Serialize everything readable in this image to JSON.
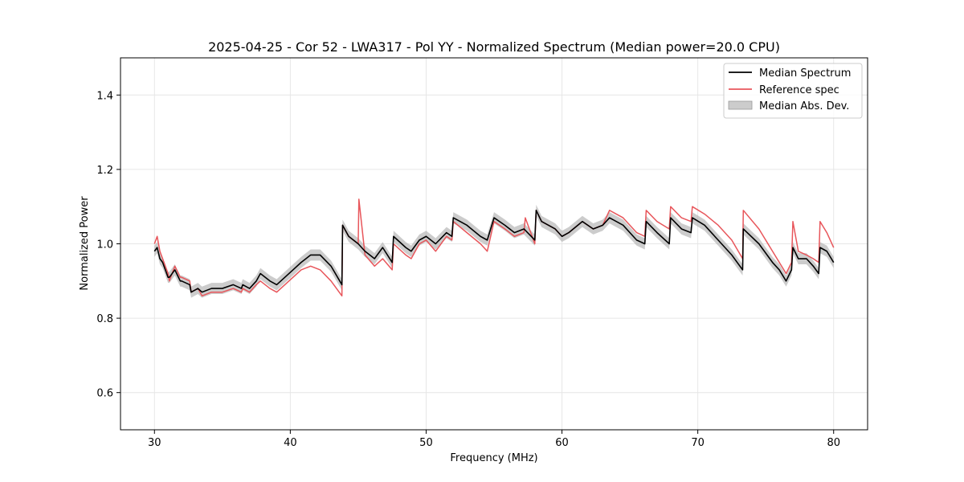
{
  "chart_data": {
    "type": "line",
    "title": "2025-04-25 - Cor 52 - LWA317 - Pol YY - Normalized Spectrum (Median power=20.0 CPU)",
    "xlabel": "Frequency (MHz)",
    "ylabel": "Normalized Power",
    "xlim": [
      27.5,
      82.5
    ],
    "ylim": [
      0.5,
      1.5
    ],
    "xticks": [
      30,
      40,
      50,
      60,
      70,
      80
    ],
    "yticks": [
      0.6,
      0.8,
      1.0,
      1.2,
      1.4
    ],
    "xtick_labels": [
      "30",
      "40",
      "50",
      "60",
      "70",
      "80"
    ],
    "ytick_labels": [
      "0.6",
      "0.8",
      "1.0",
      "1.2",
      "1.4"
    ],
    "grid": true,
    "legend_position": "top-right",
    "series": [
      {
        "name": "Median Spectrum",
        "color": "#000000",
        "x": [
          30.0,
          30.2,
          30.4,
          30.6,
          30.8,
          31.0,
          31.1,
          31.5,
          31.9,
          32.0,
          32.6,
          32.7,
          33.2,
          33.5,
          34.2,
          35.0,
          35.8,
          36.4,
          36.5,
          37.0,
          37.5,
          37.8,
          38.5,
          39.0,
          39.6,
          40.2,
          40.8,
          41.5,
          42.2,
          43.0,
          43.8,
          43.85,
          44.3,
          45.0,
          45.5,
          46.2,
          46.8,
          47.5,
          47.6,
          48.5,
          48.9,
          49.5,
          50.0,
          50.7,
          51.5,
          51.9,
          52.0,
          53.0,
          54.0,
          54.5,
          55.0,
          55.8,
          56.5,
          57.2,
          58.0,
          58.1,
          58.5,
          59.5,
          60.0,
          60.5,
          61.5,
          62.3,
          63.0,
          63.5,
          64.5,
          65.5,
          66.1,
          66.2,
          67.0,
          67.9,
          68.0,
          68.8,
          69.5,
          69.6,
          70.5,
          71.5,
          72.5,
          73.3,
          73.35,
          74.5,
          75.5,
          76.0,
          76.5,
          76.9,
          77.0,
          77.4,
          78.0,
          78.5,
          78.9,
          79.0,
          79.5,
          80.0
        ],
        "y": [
          0.98,
          0.99,
          0.96,
          0.95,
          0.93,
          0.91,
          0.91,
          0.93,
          0.9,
          0.9,
          0.89,
          0.87,
          0.88,
          0.87,
          0.88,
          0.88,
          0.89,
          0.88,
          0.89,
          0.88,
          0.9,
          0.92,
          0.9,
          0.89,
          0.91,
          0.93,
          0.95,
          0.97,
          0.97,
          0.94,
          0.89,
          1.05,
          1.02,
          1.0,
          0.98,
          0.96,
          0.99,
          0.95,
          1.02,
          0.99,
          0.98,
          1.01,
          1.02,
          1.0,
          1.03,
          1.02,
          1.07,
          1.05,
          1.02,
          1.01,
          1.07,
          1.05,
          1.03,
          1.04,
          1.01,
          1.09,
          1.06,
          1.04,
          1.02,
          1.03,
          1.06,
          1.04,
          1.05,
          1.07,
          1.05,
          1.01,
          1.0,
          1.06,
          1.03,
          1.0,
          1.07,
          1.04,
          1.03,
          1.07,
          1.05,
          1.01,
          0.97,
          0.93,
          1.04,
          1.0,
          0.95,
          0.93,
          0.9,
          0.93,
          0.99,
          0.96,
          0.96,
          0.94,
          0.92,
          0.99,
          0.98,
          0.95
        ]
      },
      {
        "name": "Reference spec",
        "color": "#e8565b",
        "x": [
          30.0,
          30.2,
          30.4,
          30.6,
          30.8,
          31.0,
          31.1,
          31.5,
          31.9,
          32.0,
          32.6,
          32.7,
          33.2,
          33.5,
          34.2,
          35.0,
          35.8,
          36.4,
          36.5,
          37.0,
          37.5,
          37.8,
          38.5,
          39.0,
          39.6,
          40.2,
          40.8,
          41.5,
          42.2,
          43.0,
          43.8,
          43.85,
          44.3,
          45.0,
          45.05,
          45.5,
          46.2,
          46.8,
          47.5,
          47.6,
          48.5,
          48.9,
          49.5,
          50.0,
          50.7,
          51.5,
          51.9,
          52.0,
          53.0,
          54.0,
          54.5,
          55.0,
          55.8,
          56.5,
          57.2,
          57.3,
          58.0,
          58.1,
          58.5,
          59.5,
          60.0,
          60.5,
          61.5,
          62.3,
          63.0,
          63.5,
          64.5,
          65.5,
          66.1,
          66.2,
          67.0,
          67.9,
          68.0,
          68.8,
          69.5,
          69.6,
          70.5,
          71.5,
          72.5,
          73.3,
          73.35,
          74.5,
          75.5,
          76.0,
          76.5,
          76.9,
          77.0,
          77.4,
          78.0,
          78.5,
          78.9,
          79.0,
          79.5,
          80.0
        ],
        "y": [
          1.0,
          1.02,
          0.98,
          0.96,
          0.94,
          0.92,
          0.9,
          0.94,
          0.91,
          0.91,
          0.9,
          0.87,
          0.88,
          0.86,
          0.87,
          0.87,
          0.88,
          0.87,
          0.88,
          0.87,
          0.89,
          0.9,
          0.88,
          0.87,
          0.89,
          0.91,
          0.93,
          0.94,
          0.93,
          0.9,
          0.86,
          1.05,
          1.02,
          1.0,
          1.12,
          0.97,
          0.94,
          0.96,
          0.93,
          1.0,
          0.97,
          0.96,
          1.0,
          1.01,
          0.98,
          1.02,
          1.01,
          1.06,
          1.03,
          1.0,
          0.98,
          1.06,
          1.04,
          1.02,
          1.03,
          1.07,
          1.0,
          1.09,
          1.06,
          1.04,
          1.02,
          1.03,
          1.06,
          1.04,
          1.05,
          1.09,
          1.07,
          1.03,
          1.02,
          1.09,
          1.06,
          1.04,
          1.1,
          1.07,
          1.06,
          1.1,
          1.08,
          1.05,
          1.01,
          0.96,
          1.09,
          1.04,
          0.98,
          0.95,
          0.92,
          0.95,
          1.06,
          0.98,
          0.97,
          0.96,
          0.95,
          1.06,
          1.03,
          0.99
        ]
      }
    ],
    "band": {
      "name": "Median Abs. Dev.",
      "color": "#b0b0b0",
      "half_width": 0.015
    }
  }
}
